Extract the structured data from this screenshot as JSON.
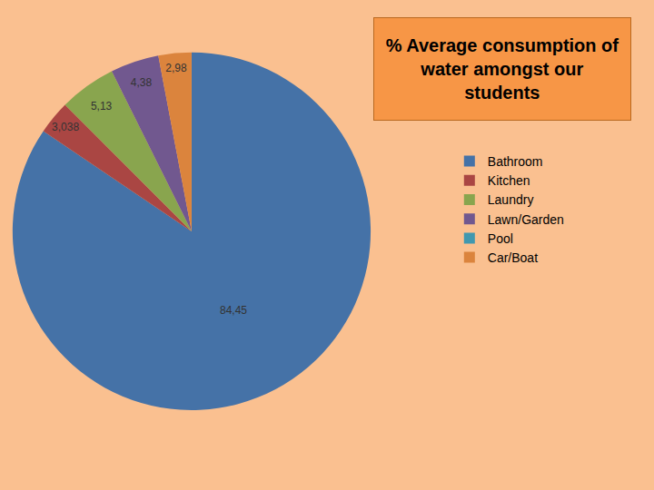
{
  "chart_data": {
    "type": "pie",
    "title": "% Average consumption of water amongst our students",
    "categories": [
      "Bathroom",
      "Kitchen",
      "Laundry",
      "Lawn/Garden",
      "Pool",
      "Car/Boat"
    ],
    "values": [
      84.45,
      3.038,
      5.13,
      4.38,
      0,
      2.98
    ],
    "value_labels": [
      "84,45",
      "3,038",
      "5,13",
      "4,38",
      null,
      "2,98"
    ],
    "colors": [
      "#4572A7",
      "#AA4643",
      "#89A54E",
      "#71588F",
      "#4198AF",
      "#DB843D"
    ],
    "data_labels": true,
    "legend": "right"
  }
}
